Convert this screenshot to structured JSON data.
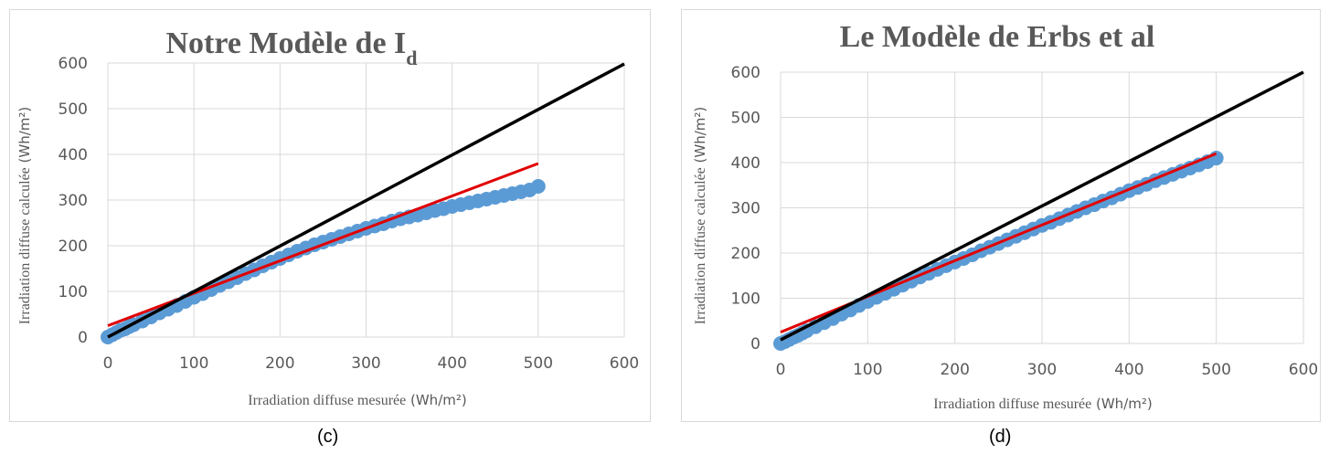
{
  "captions": {
    "left": "(c)",
    "right": "(d)"
  },
  "colors": {
    "points": "#5b9bd5",
    "fit_line": "#e00000",
    "identity_line": "#000000",
    "grid": "#d9d9d9",
    "text": "#595959"
  },
  "chart_data": [
    {
      "type": "scatter",
      "title": "Notre Modèle de I",
      "title_subscript": "d",
      "xlabel_text": "Irradiation diffuse mesurée",
      "xlabel_unit": " (Wh/m²)",
      "ylabel_text": "Irradiation diffuse calculée",
      "ylabel_unit": " (Wh/m²)",
      "xlim": [
        0,
        600
      ],
      "ylim": [
        0,
        600
      ],
      "xticks": [
        0,
        100,
        200,
        300,
        400,
        500,
        600
      ],
      "yticks": [
        0,
        100,
        200,
        300,
        400,
        500,
        600
      ],
      "grid": true,
      "legend": "none",
      "series": [
        {
          "kind": "points",
          "x": [
            0,
            5,
            10,
            15,
            20,
            25,
            30,
            40,
            50,
            60,
            70,
            80,
            90,
            100,
            110,
            120,
            130,
            140,
            150,
            160,
            170,
            180,
            190,
            200,
            210,
            220,
            230,
            240,
            250,
            260,
            270,
            280,
            290,
            300,
            310,
            320,
            330,
            340,
            350,
            360,
            370,
            380,
            390,
            400,
            410,
            420,
            430,
            440,
            450,
            460,
            470,
            480,
            490,
            500
          ],
          "y": [
            0,
            5,
            10,
            15,
            18,
            23,
            27,
            35,
            44,
            53,
            61,
            69,
            78,
            87,
            95,
            104,
            113,
            121,
            130,
            139,
            147,
            156,
            164,
            172,
            180,
            188,
            195,
            202,
            208,
            214,
            220,
            226,
            232,
            238,
            243,
            248,
            254,
            259,
            263,
            267,
            272,
            277,
            281,
            286,
            290,
            294,
            298,
            302,
            306,
            310,
            314,
            318,
            322,
            330
          ]
        },
        {
          "kind": "line",
          "name": "",
          "x": [
            0,
            500
          ],
          "y": [
            25,
            380
          ]
        },
        {
          "kind": "line",
          "name": "",
          "x": [
            0,
            600
          ],
          "y": [
            0,
            598
          ]
        }
      ]
    },
    {
      "type": "scatter",
      "title": "Le Modèle de Erbs et al",
      "title_subscript": "",
      "xlabel_text": "Irradiation diffuse mesurée",
      "xlabel_unit": " (Wh/m²)",
      "ylabel_text": "Irradiation diffuse calculée",
      "ylabel_unit": " (Wh/m²)",
      "xlim": [
        0,
        600
      ],
      "ylim": [
        0,
        600
      ],
      "xticks": [
        0,
        100,
        200,
        300,
        400,
        500,
        600
      ],
      "yticks": [
        0,
        100,
        200,
        300,
        400,
        500,
        600
      ],
      "grid": true,
      "legend": "none",
      "series": [
        {
          "kind": "points",
          "x": [
            0,
            5,
            10,
            15,
            20,
            25,
            30,
            40,
            50,
            60,
            70,
            80,
            90,
            100,
            110,
            120,
            130,
            140,
            150,
            160,
            170,
            180,
            190,
            200,
            210,
            220,
            230,
            240,
            250,
            260,
            270,
            280,
            290,
            300,
            310,
            320,
            330,
            340,
            350,
            360,
            370,
            380,
            390,
            400,
            410,
            420,
            430,
            440,
            450,
            460,
            470,
            480,
            490,
            500
          ],
          "y": [
            0,
            4,
            9,
            14,
            18,
            23,
            28,
            37,
            46,
            55,
            65,
            74,
            84,
            93,
            102,
            111,
            120,
            129,
            138,
            147,
            155,
            164,
            172,
            180,
            188,
            196,
            205,
            213,
            221,
            229,
            237,
            245,
            253,
            261,
            268,
            276,
            284,
            292,
            300,
            307,
            315,
            322,
            330,
            338,
            345,
            352,
            360,
            367,
            374,
            381,
            388,
            395,
            402,
            410
          ]
        },
        {
          "kind": "line",
          "name": "",
          "x": [
            0,
            500
          ],
          "y": [
            25,
            420
          ]
        },
        {
          "kind": "line",
          "name": "",
          "x": [
            0,
            600
          ],
          "y": [
            8,
            600
          ]
        }
      ]
    }
  ]
}
